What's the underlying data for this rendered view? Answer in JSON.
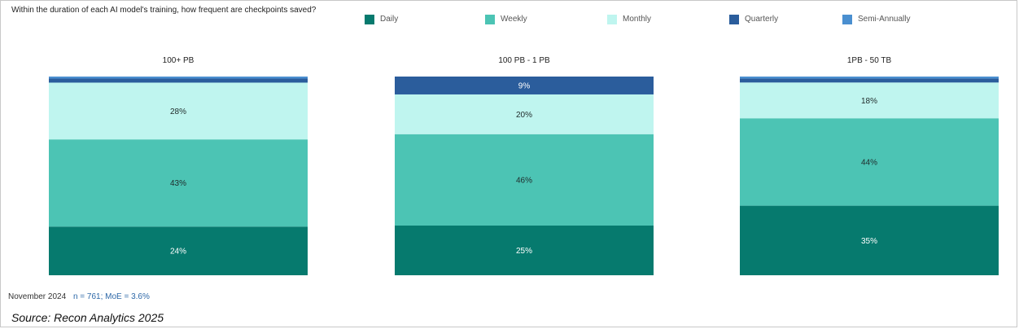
{
  "question": "Within the duration of each AI model's training, how frequent are checkpoints saved?",
  "footnote": {
    "date": "November 2024",
    "stats": "n = 761; MoE = 3.6%"
  },
  "source": "Source: Recon Analytics 2025",
  "colors": {
    "Daily": "#067a6e",
    "Weekly": "#4cc4b4",
    "Monthly": "#bff5ef",
    "Quarterly": "#2b5d9c",
    "Semi-Annually": "#4a8fd0"
  },
  "chart_data": [
    {
      "type": "bar",
      "stacked": true,
      "title": "100+ PB",
      "series": [
        {
          "name": "Daily",
          "value": 24,
          "label": "24%"
        },
        {
          "name": "Weekly",
          "value": 43,
          "label": "43%"
        },
        {
          "name": "Monthly",
          "value": 28,
          "label": "28%"
        },
        {
          "name": "Quarterly",
          "value": 2,
          "label": ""
        },
        {
          "name": "Semi-Annually",
          "value": 1,
          "label": ""
        }
      ],
      "ylim": [
        0,
        100
      ]
    },
    {
      "type": "bar",
      "stacked": true,
      "title": "100 PB - 1 PB",
      "series": [
        {
          "name": "Daily",
          "value": 25,
          "label": "25%"
        },
        {
          "name": "Weekly",
          "value": 46,
          "label": "46%"
        },
        {
          "name": "Monthly",
          "value": 20,
          "label": "20%"
        },
        {
          "name": "Quarterly",
          "value": 9,
          "label": "9%"
        },
        {
          "name": "Semi-Annually",
          "value": 0,
          "label": ""
        }
      ],
      "ylim": [
        0,
        100
      ]
    },
    {
      "type": "bar",
      "stacked": true,
      "title": "1PB - 50 TB",
      "series": [
        {
          "name": "Daily",
          "value": 35,
          "label": "35%"
        },
        {
          "name": "Weekly",
          "value": 44,
          "label": "44%"
        },
        {
          "name": "Monthly",
          "value": 18,
          "label": "18%"
        },
        {
          "name": "Quarterly",
          "value": 2,
          "label": ""
        },
        {
          "name": "Semi-Annually",
          "value": 1,
          "label": ""
        }
      ],
      "ylim": [
        0,
        100
      ]
    }
  ],
  "legend": [
    "Daily",
    "Weekly",
    "Monthly",
    "Quarterly",
    "Semi-Annually"
  ]
}
